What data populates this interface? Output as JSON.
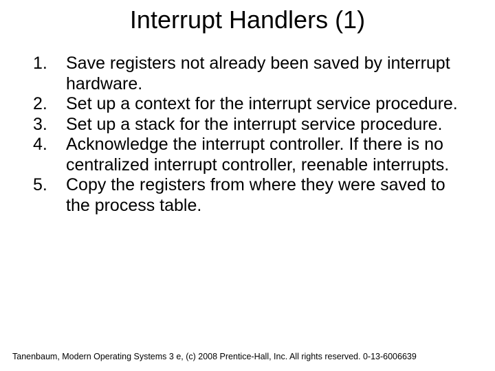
{
  "title": "Interrupt Handlers (1)",
  "title_color": "#000000",
  "title_fontsize": 36,
  "background_color": "#ffffff",
  "body_color": "#000000",
  "body_fontsize": 25,
  "items": [
    "Save registers not already been saved by interrupt hardware.",
    "Set up a context for the interrupt service procedure.",
    "Set up a stack for the interrupt service procedure.",
    "Acknowledge the interrupt controller. If there is no centralized interrupt controller, reenable interrupts.",
    "Copy the registers from where they were saved to the process table."
  ],
  "footer": "Tanenbaum, Modern Operating Systems 3 e, (c) 2008 Prentice-Hall, Inc. All rights reserved. 0-13-6006639",
  "footer_fontsize": 12.5
}
